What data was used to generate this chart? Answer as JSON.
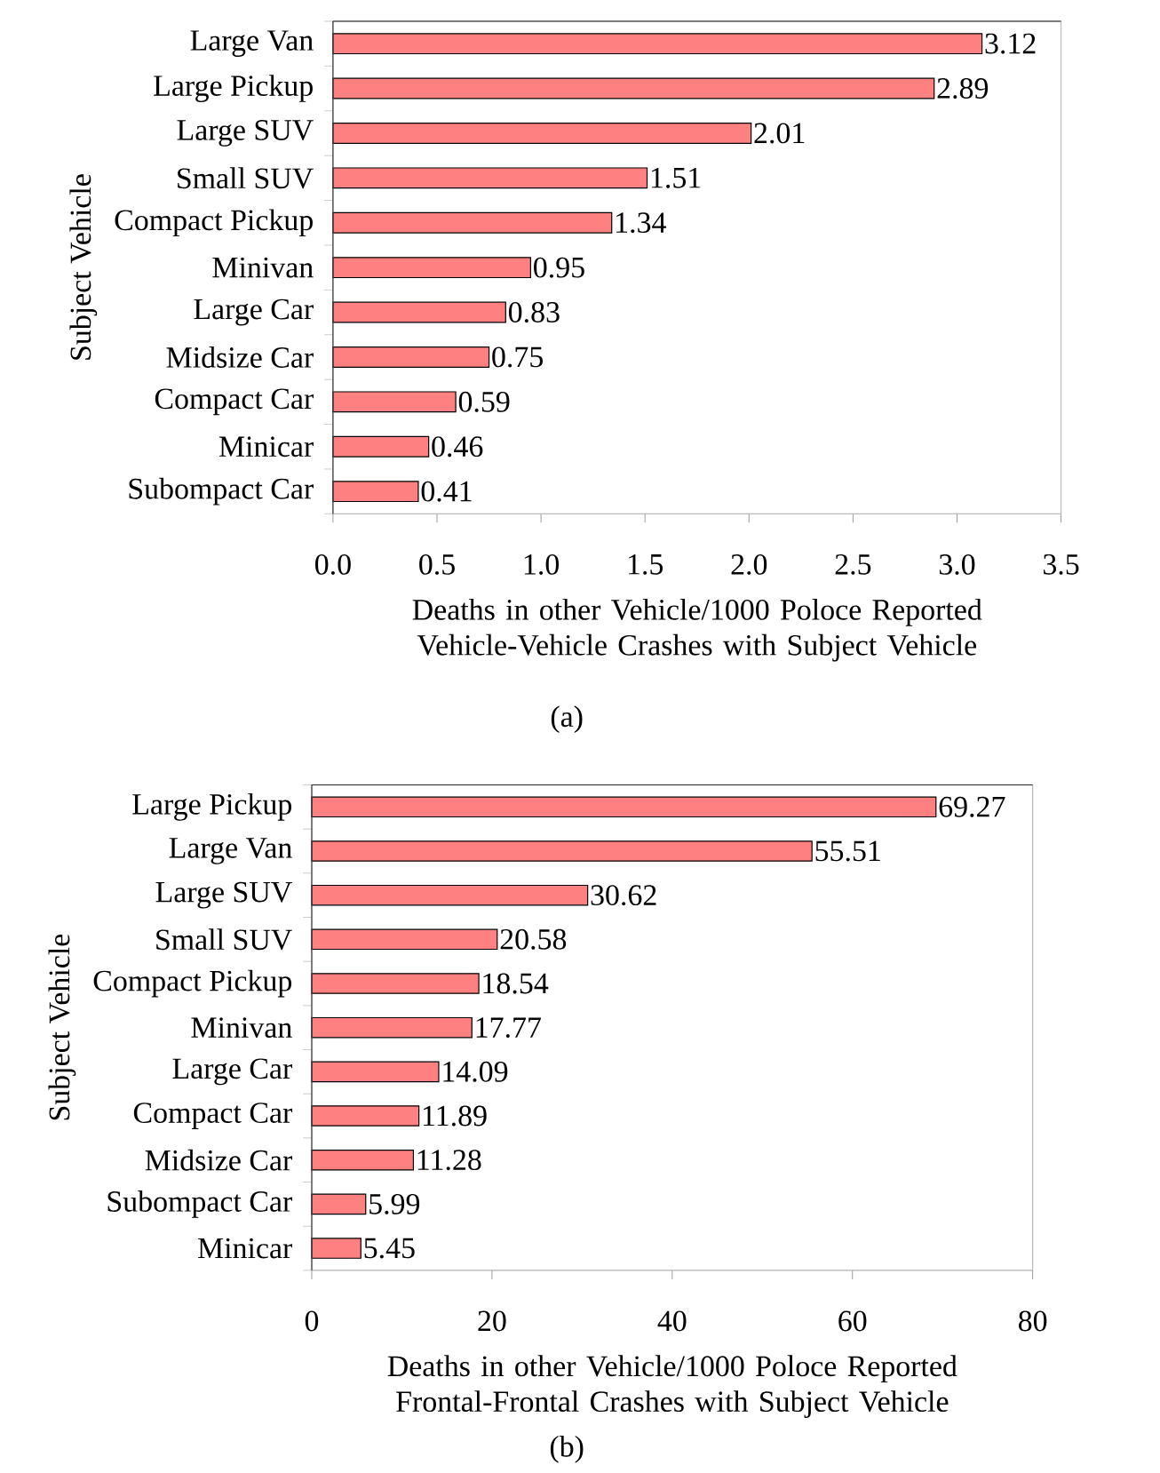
{
  "chart_data": [
    {
      "type": "bar",
      "orientation": "horizontal",
      "color": "#ff8080",
      "data_labels": true,
      "categories": [
        "Large Van",
        "Large Pickup",
        "Large SUV",
        "Small SUV",
        "Compact Pickup",
        "Minivan",
        "Large Car",
        "Midsize Car",
        "Compact Car",
        "Minicar",
        "Subompact Car"
      ],
      "values": [
        3.12,
        2.89,
        2.01,
        1.51,
        1.34,
        0.95,
        0.83,
        0.75,
        0.59,
        0.46,
        0.41
      ],
      "xlim": [
        0,
        3.5
      ],
      "xticks": [
        {
          "value": 0,
          "label": "0.0"
        },
        0.5,
        {
          "value": 1,
          "label": "1.0"
        },
        1.5,
        {
          "value": 2,
          "label": "2.0"
        },
        2.5,
        {
          "value": 3,
          "label": "3.0"
        },
        3.5
      ],
      "xlabel": "Deaths in other Vehicle/1000 Poloce Reported Vehicle-Vehicle Crashes with Subject Vehicle",
      "ylabel": "Subject  Vehicle",
      "annotations": [
        "(a)"
      ]
    },
    {
      "type": "bar",
      "orientation": "horizontal",
      "color": "#ff8080",
      "data_labels": true,
      "categories": [
        "Large Pickup",
        "Large Van",
        "Large SUV",
        "Small SUV",
        "Compact Pickup",
        "Minivan",
        "Large Car",
        "Compact Car",
        "Midsize Car",
        "Subompact Car",
        "Minicar"
      ],
      "values": [
        69.27,
        55.51,
        30.62,
        20.58,
        18.54,
        17.77,
        14.09,
        11.89,
        11.28,
        5.99,
        5.45
      ],
      "xlim": [
        0,
        80
      ],
      "xticks": [
        0,
        20,
        40,
        60,
        80
      ],
      "xlabel": "Deaths in other Vehicle/1000 Poloce Reported Frontal-Frontal Crashes with Subject Vehicle",
      "ylabel": "Subject  Vehicle",
      "annotations": [
        "(b)"
      ]
    }
  ]
}
